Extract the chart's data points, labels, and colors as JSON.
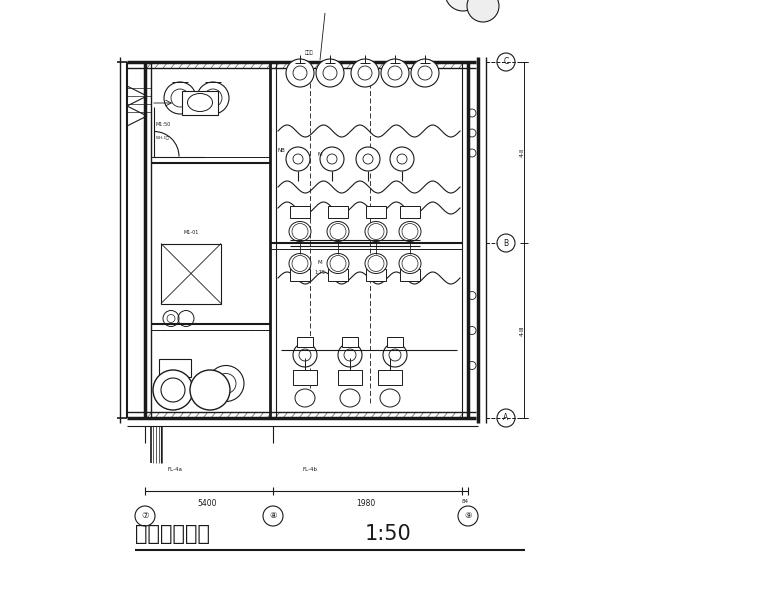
{
  "title": "卫生间平面图",
  "scale": "1:50",
  "background": "#ffffff",
  "line_color": "#1a1a1a",
  "fig_width": 7.6,
  "fig_height": 5.96,
  "dpi": 100,
  "title_fontsize": 15,
  "scale_fontsize": 15,
  "grid_labels": [
    "⑦",
    "⑧",
    "⑨"
  ],
  "right_labels": [
    "C",
    "B",
    "A"
  ],
  "dim_text1": "5400",
  "dim_text2": "1980",
  "dim_text3": "84",
  "right_dim1": "4·Ⅱ",
  "right_dim2": "4·Ⅲ"
}
